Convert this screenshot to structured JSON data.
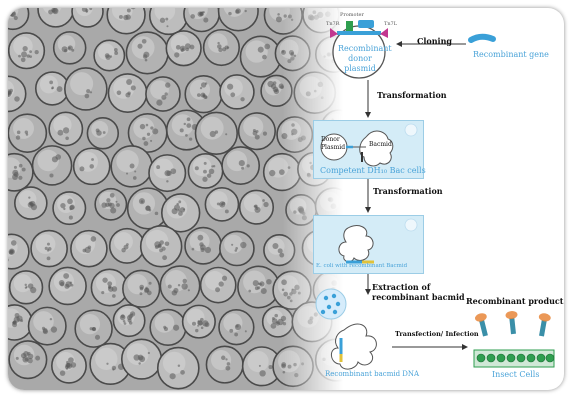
{
  "labels": {
    "promoter": "Promoter",
    "tn7r": "Tn7R",
    "tn7l": "Tn7L",
    "donor_plasmid": "Recombinant donor plasmid",
    "cloning": "Cloning",
    "recombinant_gene": "Recombinant gene",
    "transformation_1": "Transformation",
    "donor": "Donor",
    "plasmid": "Plasmid",
    "bacmid": "Bacmid",
    "competent_cells": "Competent DH₁₀ Bac cells",
    "transformation_2": "Transformation",
    "ecoli": "E. coli with recombinant Bacmid",
    "extraction": "Extraction of recombinant bacmid",
    "recombinant_product": "Recombinant product",
    "transfection": "Transfection/ Infection",
    "bacmid_dna": "Recombinant bacmid DNA",
    "insect_cells": "Insect Cells"
  },
  "colors": {
    "accent_blue": "#4aa3d8",
    "box_fill": "#d4ecf7",
    "gene_blue": "#3aa0d8",
    "green": "#2e9e4f",
    "orange": "#e8863a",
    "magenta": "#c2368f"
  }
}
